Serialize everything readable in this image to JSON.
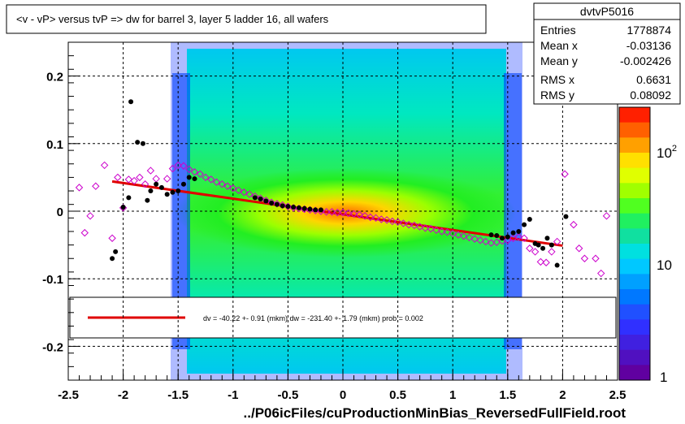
{
  "title": "<v - vP>       versus  tvP =>  dw for barrel 3, layer 5 ladder 16, all wafers",
  "footer": "../P06icFiles/cuProductionMinBias_ReversedFullField.root",
  "stats": {
    "name": "dvtvP5016",
    "rows": [
      {
        "label": "Entries",
        "value": "1778874"
      },
      {
        "label": "Mean x",
        "value": "-0.03136"
      },
      {
        "label": "Mean y",
        "value": "-0.002426"
      },
      {
        "label": "RMS x",
        "value": "0.6631"
      },
      {
        "label": "RMS y",
        "value": "0.08092"
      }
    ]
  },
  "fit_text": "dv =  -40.22 +-  0.91 (mkm) dw = -231.40 +-  1.79 (mkm) prob = 0.002",
  "colors": {
    "fit_line": "#e00000",
    "profile_points": "#000000",
    "open_markers": "#cc00cc",
    "frame": "#000000"
  },
  "chart_data": {
    "type": "heatmap",
    "title": "<v - vP>       versus  tvP =>  dw for barrel 3, layer 5 ladder 16, all wafers",
    "xlabel": "../P06icFiles/cuProductionMinBias_ReversedFullField.root",
    "ylabel": "",
    "xlim": [
      -2.5,
      2.5
    ],
    "ylim": [
      -0.25,
      0.25
    ],
    "grid": true,
    "x_ticks": [
      "-2.5",
      "-2",
      "-1.5",
      "-1",
      "-0.5",
      "0",
      "0.5",
      "1",
      "1.5",
      "2",
      "2.5"
    ],
    "y_ticks": [
      "-0.2",
      "-0.1",
      "0",
      "0.1",
      "0.2"
    ],
    "colorbar": {
      "scale": "log",
      "labels": [
        "1",
        "10",
        "10^2"
      ],
      "range": [
        1,
        300
      ]
    },
    "fit_line": {
      "x": [
        -2.1,
        2.0
      ],
      "y": [
        0.044,
        -0.051
      ]
    },
    "series": [
      {
        "marker": "filled-circle",
        "points": [
          [
            -2.1,
            -0.07
          ],
          [
            -2.07,
            -0.06
          ],
          [
            -2.0,
            0.006
          ],
          [
            -1.95,
            0.02
          ],
          [
            -1.93,
            0.162
          ],
          [
            -1.87,
            0.102
          ],
          [
            -1.82,
            0.1
          ],
          [
            -1.78,
            0.016
          ],
          [
            -1.75,
            0.03
          ],
          [
            -1.7,
            0.04
          ],
          [
            -1.65,
            0.035
          ],
          [
            -1.6,
            0.025
          ],
          [
            -1.55,
            0.028
          ],
          [
            -1.5,
            0.03
          ],
          [
            -1.45,
            0.04
          ],
          [
            -1.4,
            0.05
          ],
          [
            -1.35,
            0.048
          ],
          [
            -0.8,
            0.02
          ],
          [
            -0.75,
            0.018
          ],
          [
            -0.7,
            0.015
          ],
          [
            -0.65,
            0.012
          ],
          [
            -0.6,
            0.01
          ],
          [
            -0.55,
            0.008
          ],
          [
            -0.5,
            0.007
          ],
          [
            -0.45,
            0.006
          ],
          [
            -0.4,
            0.005
          ],
          [
            -0.35,
            0.004
          ],
          [
            -0.3,
            0.003
          ],
          [
            -0.25,
            0.002
          ],
          [
            -0.2,
            0.002
          ],
          [
            1.35,
            -0.035
          ],
          [
            1.4,
            -0.036
          ],
          [
            1.45,
            -0.04
          ],
          [
            1.5,
            -0.038
          ],
          [
            1.55,
            -0.032
          ],
          [
            1.6,
            -0.03
          ],
          [
            1.65,
            -0.02
          ],
          [
            1.7,
            -0.012
          ],
          [
            1.75,
            -0.048
          ],
          [
            1.78,
            -0.05
          ],
          [
            1.82,
            -0.055
          ],
          [
            1.86,
            -0.04
          ],
          [
            1.9,
            -0.05
          ],
          [
            1.95,
            -0.08
          ],
          [
            2.03,
            -0.008
          ]
        ]
      },
      {
        "marker": "open-diamond",
        "points": [
          [
            -2.4,
            0.035
          ],
          [
            -2.35,
            -0.032
          ],
          [
            -2.3,
            -0.007
          ],
          [
            -2.25,
            0.037
          ],
          [
            -2.17,
            0.068
          ],
          [
            -2.1,
            -0.04
          ],
          [
            -2.05,
            0.05
          ],
          [
            -2.0,
            0.005
          ],
          [
            -1.95,
            0.047
          ],
          [
            -1.9,
            0.045
          ],
          [
            -1.85,
            0.05
          ],
          [
            -1.8,
            0.04
          ],
          [
            -1.75,
            0.06
          ],
          [
            -1.7,
            0.048
          ],
          [
            -1.6,
            0.048
          ],
          [
            -1.55,
            0.063
          ],
          [
            -1.5,
            0.068
          ],
          [
            -1.45,
            0.067
          ],
          [
            -1.4,
            0.062
          ],
          [
            -1.35,
            0.058
          ],
          [
            -1.3,
            0.055
          ],
          [
            -1.25,
            0.05
          ],
          [
            -1.2,
            0.047
          ],
          [
            -1.15,
            0.043
          ],
          [
            -1.1,
            0.04
          ],
          [
            -1.05,
            0.037
          ],
          [
            -1.0,
            0.034
          ],
          [
            -0.95,
            0.031
          ],
          [
            -0.9,
            0.028
          ],
          [
            -0.85,
            0.025
          ],
          [
            -0.8,
            0.022
          ],
          [
            -0.75,
            0.019
          ],
          [
            -0.7,
            0.016
          ],
          [
            -0.65,
            0.013
          ],
          [
            -0.6,
            0.011
          ],
          [
            -0.55,
            0.009
          ],
          [
            -0.5,
            0.007
          ],
          [
            -0.45,
            0.005
          ],
          [
            -0.4,
            0.004
          ],
          [
            -0.35,
            0.003
          ],
          [
            -0.3,
            0.002
          ],
          [
            -0.25,
            0.001
          ],
          [
            -0.2,
            0.0
          ],
          [
            -0.15,
            -0.001
          ],
          [
            -0.1,
            -0.001
          ],
          [
            -0.05,
            -0.002
          ],
          [
            0.0,
            -0.002
          ],
          [
            0.05,
            -0.003
          ],
          [
            0.1,
            -0.004
          ],
          [
            0.15,
            -0.005
          ],
          [
            0.2,
            -0.007
          ],
          [
            0.25,
            -0.009
          ],
          [
            0.3,
            -0.01
          ],
          [
            0.35,
            -0.012
          ],
          [
            0.4,
            -0.013
          ],
          [
            0.45,
            -0.015
          ],
          [
            0.5,
            -0.016
          ],
          [
            0.55,
            -0.018
          ],
          [
            0.6,
            -0.02
          ],
          [
            0.65,
            -0.021
          ],
          [
            0.7,
            -0.023
          ],
          [
            0.75,
            -0.025
          ],
          [
            0.8,
            -0.026
          ],
          [
            0.85,
            -0.028
          ],
          [
            0.9,
            -0.03
          ],
          [
            0.95,
            -0.031
          ],
          [
            1.0,
            -0.033
          ],
          [
            1.05,
            -0.035
          ],
          [
            1.1,
            -0.037
          ],
          [
            1.15,
            -0.039
          ],
          [
            1.2,
            -0.041
          ],
          [
            1.25,
            -0.043
          ],
          [
            1.3,
            -0.045
          ],
          [
            1.35,
            -0.047
          ],
          [
            1.4,
            -0.046
          ],
          [
            1.45,
            -0.044
          ],
          [
            1.5,
            -0.043
          ],
          [
            1.55,
            -0.04
          ],
          [
            1.6,
            -0.038
          ],
          [
            1.65,
            -0.04
          ],
          [
            1.7,
            -0.055
          ],
          [
            1.75,
            -0.06
          ],
          [
            1.8,
            -0.075
          ],
          [
            1.85,
            -0.076
          ],
          [
            1.9,
            -0.06
          ],
          [
            1.95,
            -0.045
          ],
          [
            2.02,
            0.055
          ],
          [
            2.1,
            -0.02
          ],
          [
            2.15,
            -0.055
          ],
          [
            2.2,
            -0.07
          ],
          [
            2.3,
            -0.07
          ],
          [
            2.35,
            -0.092
          ],
          [
            2.4,
            -0.007
          ]
        ]
      }
    ]
  }
}
